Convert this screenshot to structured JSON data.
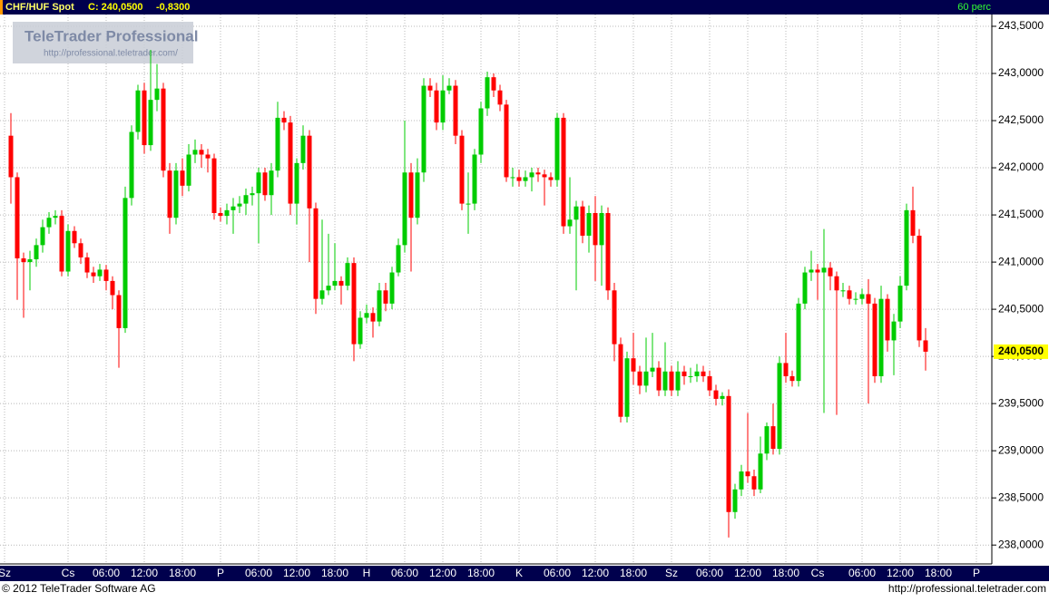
{
  "header": {
    "symbol": "CHF/HUF Spot",
    "close": "C: 240,0500",
    "change": "-0,8300",
    "interval": "60 perc"
  },
  "watermark": {
    "brand": "TeleTrader Professional",
    "url": "http://professional.teletrader.com/"
  },
  "footer": {
    "copyright": "© 2012 TeleTrader Software AG",
    "url": "http://professional.teletrader.com"
  },
  "chart_data": {
    "type": "candlestick",
    "up_color": "#00cc00",
    "down_color": "#ff0000",
    "grid": true,
    "ylim": [
      237.8,
      243.625
    ],
    "yticks": [
      {
        "value": 238.0,
        "label": "238,0000"
      },
      {
        "value": 238.5,
        "label": "238,5000"
      },
      {
        "value": 239.0,
        "label": "239,0000"
      },
      {
        "value": 239.5,
        "label": "239,5000"
      },
      {
        "value": 240.0,
        "label": "240,0000"
      },
      {
        "value": 240.5,
        "label": "240,5000"
      },
      {
        "value": 241.0,
        "label": "241,0000"
      },
      {
        "value": 241.5,
        "label": "241,5000"
      },
      {
        "value": 242.0,
        "label": "242,0000"
      },
      {
        "value": 242.5,
        "label": "242,5000"
      },
      {
        "value": 243.0,
        "label": "243,0000"
      },
      {
        "value": 243.5,
        "label": "243,5000"
      }
    ],
    "last_price": {
      "value": 240.05,
      "label": "240,0500"
    },
    "categories": [
      "Sz",
      null,
      null,
      null,
      null,
      null,
      null,
      null,
      null,
      null,
      "Cs",
      null,
      null,
      null,
      null,
      null,
      "06:00",
      null,
      null,
      null,
      null,
      null,
      "12:00",
      null,
      null,
      null,
      null,
      null,
      "18:00",
      null,
      null,
      null,
      null,
      null,
      "P",
      null,
      null,
      null,
      null,
      null,
      "06:00",
      null,
      null,
      null,
      null,
      null,
      "12:00",
      null,
      null,
      null,
      null,
      null,
      "18:00",
      null,
      null,
      null,
      null,
      "H",
      null,
      null,
      null,
      null,
      null,
      "06:00",
      null,
      null,
      null,
      null,
      null,
      "12:00",
      null,
      null,
      null,
      null,
      null,
      "18:00",
      null,
      null,
      null,
      null,
      null,
      "K",
      null,
      null,
      null,
      null,
      null,
      "06:00",
      null,
      null,
      null,
      null,
      null,
      "12:00",
      null,
      null,
      null,
      null,
      null,
      "18:00",
      null,
      null,
      null,
      null,
      null,
      "Sz",
      null,
      null,
      null,
      null,
      null,
      "06:00",
      null,
      null,
      null,
      null,
      null,
      "12:00",
      null,
      null,
      null,
      null,
      null,
      "18:00",
      null,
      null,
      null,
      null,
      "Cs",
      null,
      null,
      null,
      null,
      null,
      null,
      "06:00",
      null,
      null,
      null,
      null,
      null,
      "12:00",
      null,
      null,
      null,
      null,
      null,
      "18:00",
      null,
      null,
      null,
      null,
      null,
      "P"
    ],
    "ohlc": [
      null,
      [
        242.34,
        242.58,
        241.62,
        241.9
      ],
      [
        241.9,
        241.95,
        240.6,
        241.04
      ],
      [
        241.04,
        241.1,
        240.41,
        241.0
      ],
      [
        241.0,
        241.12,
        240.7,
        241.03
      ],
      [
        241.03,
        241.25,
        240.95,
        241.18
      ],
      [
        241.18,
        241.45,
        241.1,
        241.37
      ],
      [
        241.37,
        241.53,
        241.3,
        241.47
      ],
      [
        241.47,
        241.55,
        241.4,
        241.49
      ],
      [
        241.49,
        241.55,
        240.85,
        240.9
      ],
      [
        240.9,
        241.4,
        240.85,
        241.33
      ],
      [
        241.33,
        241.38,
        241.15,
        241.2
      ],
      [
        241.2,
        241.25,
        240.98,
        241.05
      ],
      [
        241.05,
        241.1,
        240.83,
        240.89
      ],
      [
        240.89,
        240.95,
        240.78,
        240.85
      ],
      [
        240.85,
        240.98,
        240.8,
        240.92
      ],
      [
        240.92,
        240.97,
        240.7,
        240.8
      ],
      [
        240.8,
        240.85,
        240.5,
        240.65
      ],
      [
        240.65,
        240.7,
        239.88,
        240.3
      ],
      [
        240.3,
        241.8,
        240.25,
        241.68
      ],
      [
        241.68,
        242.45,
        241.6,
        242.38
      ],
      [
        242.38,
        242.88,
        242.3,
        242.82
      ],
      [
        242.82,
        242.9,
        242.15,
        242.24
      ],
      [
        242.24,
        243.25,
        242.18,
        242.72
      ],
      [
        242.72,
        243.1,
        242.6,
        242.84
      ],
      [
        242.84,
        242.9,
        241.9,
        241.97
      ],
      [
        241.97,
        242.05,
        241.3,
        241.47
      ],
      [
        241.47,
        242.05,
        241.4,
        241.97
      ],
      [
        241.97,
        242.1,
        241.7,
        241.81
      ],
      [
        241.81,
        242.25,
        241.75,
        242.14
      ],
      [
        242.14,
        242.3,
        242.05,
        242.19
      ],
      [
        242.19,
        242.25,
        242.0,
        242.14
      ],
      [
        242.14,
        242.2,
        241.95,
        242.1
      ],
      [
        242.1,
        242.15,
        241.45,
        241.52
      ],
      [
        241.52,
        241.58,
        241.43,
        241.49
      ],
      [
        241.49,
        241.62,
        241.4,
        241.55
      ],
      [
        241.55,
        241.68,
        241.3,
        241.59
      ],
      [
        241.59,
        241.7,
        241.52,
        241.62
      ],
      [
        241.62,
        241.78,
        241.5,
        241.71
      ],
      [
        241.71,
        241.8,
        241.6,
        241.73
      ],
      [
        241.73,
        242.0,
        241.2,
        241.95
      ],
      [
        241.95,
        242.0,
        241.65,
        241.71
      ],
      [
        241.71,
        242.05,
        241.5,
        241.97
      ],
      [
        241.97,
        242.7,
        241.9,
        242.53
      ],
      [
        242.53,
        242.6,
        242.4,
        242.48
      ],
      [
        242.48,
        242.55,
        241.5,
        241.62
      ],
      [
        241.62,
        242.1,
        241.4,
        242.05
      ],
      [
        242.05,
        242.45,
        241.98,
        242.34
      ],
      [
        242.34,
        242.4,
        241.0,
        241.57
      ],
      [
        241.57,
        241.63,
        240.45,
        240.61
      ],
      [
        240.61,
        241.45,
        240.55,
        240.7
      ],
      [
        240.7,
        241.3,
        240.65,
        240.75
      ],
      [
        240.75,
        241.2,
        240.7,
        240.8
      ],
      [
        240.8,
        240.85,
        240.55,
        240.75
      ],
      [
        240.75,
        241.05,
        240.7,
        240.99
      ],
      [
        240.99,
        241.05,
        239.95,
        240.13
      ],
      [
        240.13,
        240.48,
        240.08,
        240.41
      ],
      [
        240.41,
        240.55,
        240.35,
        240.46
      ],
      [
        240.46,
        240.52,
        240.2,
        240.37
      ],
      [
        240.37,
        240.78,
        240.32,
        240.7
      ],
      [
        240.7,
        240.78,
        240.48,
        240.56
      ],
      [
        240.56,
        240.95,
        240.5,
        240.89
      ],
      [
        240.89,
        241.25,
        240.85,
        241.18
      ],
      [
        241.18,
        242.5,
        241.1,
        241.95
      ],
      [
        241.95,
        242.05,
        240.9,
        241.47
      ],
      [
        241.47,
        242.1,
        241.4,
        241.95
      ],
      [
        241.95,
        242.95,
        241.85,
        242.87
      ],
      [
        242.87,
        242.95,
        242.75,
        242.82
      ],
      [
        242.82,
        242.9,
        242.4,
        242.48
      ],
      [
        242.48,
        242.98,
        242.4,
        242.82
      ],
      [
        242.82,
        242.95,
        242.78,
        242.87
      ],
      [
        242.87,
        242.93,
        242.25,
        242.34
      ],
      [
        242.34,
        242.4,
        241.55,
        241.62
      ],
      [
        241.62,
        241.95,
        241.3,
        241.62
      ],
      [
        241.62,
        242.2,
        241.55,
        242.14
      ],
      [
        242.14,
        242.7,
        242.05,
        242.63
      ],
      [
        242.63,
        243.02,
        242.55,
        242.96
      ],
      [
        242.96,
        243.0,
        242.75,
        242.82
      ],
      [
        242.82,
        242.88,
        242.6,
        242.67
      ],
      [
        242.67,
        242.72,
        241.85,
        241.9
      ],
      [
        241.9,
        242.0,
        241.8,
        241.9
      ],
      [
        241.9,
        241.98,
        241.8,
        241.86
      ],
      [
        241.86,
        241.97,
        241.8,
        241.9
      ],
      [
        241.9,
        242.0,
        241.75,
        241.95
      ],
      [
        241.95,
        242.0,
        241.85,
        241.93
      ],
      [
        241.93,
        241.98,
        241.6,
        241.9
      ],
      [
        241.9,
        241.95,
        241.8,
        241.87
      ],
      [
        241.87,
        242.58,
        241.8,
        242.53
      ],
      [
        242.53,
        242.58,
        241.3,
        241.38
      ],
      [
        241.38,
        241.9,
        241.3,
        241.45
      ],
      [
        241.45,
        241.65,
        240.7,
        241.59
      ],
      [
        241.59,
        241.65,
        241.2,
        241.28
      ],
      [
        241.28,
        241.6,
        241.1,
        241.52
      ],
      [
        241.52,
        241.7,
        240.8,
        241.18
      ],
      [
        241.18,
        241.6,
        240.75,
        241.52
      ],
      [
        241.52,
        241.58,
        240.6,
        240.7
      ],
      [
        240.7,
        240.78,
        239.95,
        240.13
      ],
      [
        240.13,
        240.2,
        239.3,
        239.36
      ],
      [
        239.36,
        240.05,
        239.3,
        239.98
      ],
      [
        239.98,
        240.25,
        239.7,
        239.84
      ],
      [
        239.84,
        239.9,
        239.6,
        239.69
      ],
      [
        239.69,
        240.2,
        239.62,
        239.84
      ],
      [
        239.84,
        240.25,
        239.78,
        239.88
      ],
      [
        239.88,
        239.95,
        239.58,
        239.64
      ],
      [
        239.64,
        240.15,
        239.58,
        239.84
      ],
      [
        239.84,
        239.9,
        239.58,
        239.64
      ],
      [
        239.64,
        239.95,
        239.58,
        239.84
      ],
      [
        239.84,
        239.9,
        239.7,
        239.79
      ],
      [
        239.79,
        239.88,
        239.72,
        239.79
      ],
      [
        239.79,
        239.92,
        239.73,
        239.84
      ],
      [
        239.84,
        239.9,
        239.73,
        239.79
      ],
      [
        239.79,
        239.85,
        239.58,
        239.64
      ],
      [
        239.64,
        239.7,
        239.48,
        239.55
      ],
      [
        239.55,
        239.62,
        239.48,
        239.58
      ],
      [
        239.58,
        239.65,
        238.08,
        238.35
      ],
      [
        238.35,
        238.65,
        238.28,
        238.59
      ],
      [
        238.59,
        238.85,
        238.52,
        238.78
      ],
      [
        238.78,
        239.4,
        238.66,
        238.73
      ],
      [
        238.73,
        238.8,
        238.52,
        238.59
      ],
      [
        238.59,
        239.15,
        238.55,
        238.97
      ],
      [
        238.97,
        239.3,
        238.9,
        239.26
      ],
      [
        239.26,
        239.5,
        238.96,
        239.02
      ],
      [
        239.02,
        240.0,
        238.96,
        239.93
      ],
      [
        239.93,
        240.25,
        239.72,
        239.79
      ],
      [
        239.79,
        239.85,
        239.68,
        239.74
      ],
      [
        239.74,
        240.62,
        239.68,
        240.56
      ],
      [
        240.56,
        240.95,
        240.5,
        240.89
      ],
      [
        240.89,
        241.12,
        240.8,
        240.92
      ],
      [
        240.92,
        240.98,
        240.6,
        240.89
      ],
      [
        240.89,
        241.35,
        239.4,
        240.94
      ],
      [
        240.94,
        241.0,
        240.7,
        240.85
      ],
      [
        240.85,
        240.9,
        239.38,
        240.7
      ],
      [
        240.7,
        240.78,
        240.63,
        240.7
      ],
      [
        240.7,
        240.75,
        240.55,
        240.61
      ],
      [
        240.61,
        240.68,
        240.55,
        240.61
      ],
      [
        240.61,
        240.72,
        240.55,
        240.66
      ],
      [
        240.66,
        240.82,
        239.5,
        240.56
      ],
      [
        240.56,
        240.62,
        239.72,
        239.79
      ],
      [
        239.79,
        240.75,
        239.72,
        240.61
      ],
      [
        240.61,
        240.66,
        240.05,
        240.17
      ],
      [
        240.17,
        240.45,
        239.8,
        240.37
      ],
      [
        240.37,
        240.85,
        240.3,
        240.75
      ],
      [
        240.75,
        241.62,
        240.7,
        241.55
      ],
      [
        241.55,
        241.8,
        241.2,
        241.28
      ],
      [
        241.28,
        241.35,
        240.1,
        240.17
      ],
      [
        240.17,
        240.3,
        239.85,
        240.05
      ],
      null,
      null,
      null,
      null,
      null,
      null,
      null,
      null
    ]
  }
}
